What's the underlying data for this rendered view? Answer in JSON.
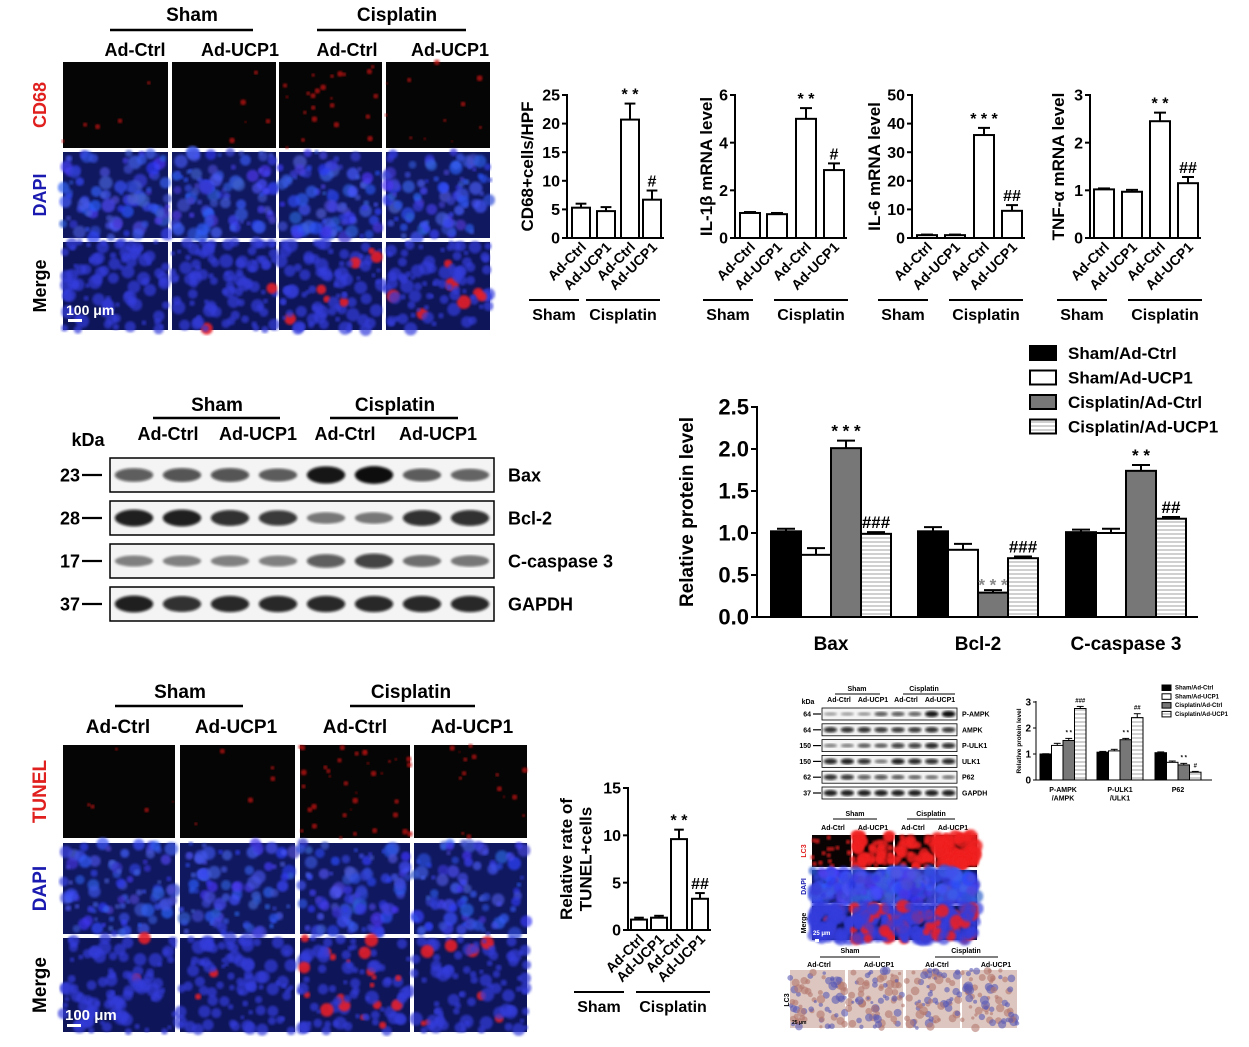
{
  "panel_a": {
    "groups": [
      "Sham",
      "Cisplatin"
    ],
    "conditions": [
      "Ad-Ctrl",
      "Ad-UCP1",
      "Ad-Ctrl",
      "Ad-UCP1"
    ],
    "rows": [
      "CD68",
      "DAPI",
      "Merge"
    ],
    "scale_bar": "100 μm"
  },
  "panel_b": {
    "kda_label": "kDa",
    "groups": [
      "Sham",
      "Cisplatin"
    ],
    "conditions": [
      "Ad-Ctrl",
      "Ad-UCP1",
      "Ad-Ctrl",
      "Ad-UCP1"
    ],
    "proteins": [
      {
        "name": "Bax",
        "kda": "23",
        "bands": [
          0.55,
          0.6,
          0.6,
          0.5,
          0.95,
          1.0,
          0.5,
          0.45
        ]
      },
      {
        "name": "Bcl-2",
        "kda": "28",
        "bands": [
          0.9,
          0.9,
          0.8,
          0.75,
          0.35,
          0.35,
          0.8,
          0.8
        ]
      },
      {
        "name": "C-caspase 3",
        "kda": "17",
        "bands": [
          0.3,
          0.3,
          0.3,
          0.3,
          0.55,
          0.7,
          0.4,
          0.35
        ]
      },
      {
        "name": "GAPDH",
        "kda": "37",
        "bands": [
          0.9,
          0.8,
          0.85,
          0.85,
          0.85,
          0.85,
          0.85,
          0.85
        ]
      }
    ]
  },
  "panel_c": {
    "groups": [
      "Sham",
      "Cisplatin"
    ],
    "conditions": [
      "Ad-Ctrl",
      "Ad-UCP1",
      "Ad-Ctrl",
      "Ad-UCP1"
    ],
    "rows": [
      "TUNEL",
      "DAPI",
      "Merge"
    ],
    "scale_bar": "100 μm"
  },
  "panel_d": {
    "kda_label": "kDa",
    "groups": [
      "Sham",
      "Cisplatin"
    ],
    "conditions": [
      "Ad-Ctrl",
      "Ad-UCP1",
      "Ad-Ctrl",
      "Ad-UCP1"
    ],
    "proteins": [
      {
        "name": "P-AMPK",
        "kda": "64",
        "bands": [
          0.15,
          0.15,
          0.2,
          0.5,
          0.5,
          0.45,
          0.95,
          1.0
        ]
      },
      {
        "name": "AMPK",
        "kda": "64",
        "bands": [
          0.8,
          0.8,
          0.8,
          0.75,
          0.75,
          0.75,
          0.8,
          0.75
        ]
      },
      {
        "name": "P-ULK1",
        "kda": "150",
        "bands": [
          0.3,
          0.3,
          0.5,
          0.5,
          0.7,
          0.7,
          0.85,
          0.8
        ]
      },
      {
        "name": "ULK1",
        "kda": "150",
        "bands": [
          0.85,
          0.9,
          0.8,
          0.35,
          0.9,
          0.85,
          0.8,
          0.85
        ]
      },
      {
        "name": "P62",
        "kda": "62",
        "bands": [
          0.8,
          0.75,
          0.55,
          0.6,
          0.5,
          0.45,
          0.4,
          0.35
        ]
      },
      {
        "name": "GAPDH",
        "kda": "37",
        "bands": [
          0.9,
          0.9,
          0.9,
          0.9,
          0.9,
          0.9,
          0.9,
          0.9
        ]
      }
    ]
  },
  "panel_e": {
    "groups": [
      "Sham",
      "Cisplatin"
    ],
    "conditions": [
      "Ad-Ctrl",
      "Ad-UCP1",
      "Ad-Ctrl",
      "Ad-UCP1"
    ],
    "rows": [
      "LC3",
      "DAPI",
      "Merge"
    ],
    "scale_bar": "25 μm"
  },
  "panel_f": {
    "groups": [
      "Sham",
      "Cisplatin"
    ],
    "conditions": [
      "Ad-Ctrl",
      "Ad-UCP1",
      "Ad-Ctrl",
      "Ad-UCP1"
    ],
    "rows": [
      "LC3"
    ],
    "scale_bar": "25 μm"
  },
  "chart_data": [
    {
      "type": "bar",
      "title": "",
      "ylabel": "CD68+cells/HPF",
      "xlabel": "",
      "ylim": [
        0,
        25
      ],
      "ytick_labels": [
        "0",
        "5",
        "10",
        "15",
        "20",
        "25"
      ],
      "categories": [
        "Ad-Ctrl",
        "Ad-UCP1",
        "Ad-Ctrl",
        "Ad-UCP1"
      ],
      "group_labels": [
        "Sham",
        "Cisplatin"
      ],
      "values": [
        5.3,
        4.7,
        20.7,
        6.7
      ],
      "errors": [
        0.7,
        0.7,
        2.8,
        1.6
      ],
      "significance": [
        "",
        "",
        "* *",
        "#"
      ]
    },
    {
      "type": "bar",
      "title": "",
      "ylabel": "IL-1β mRNA level",
      "xlabel": "",
      "ylim": [
        0,
        6
      ],
      "ytick_labels": [
        "0",
        "2",
        "4",
        "6"
      ],
      "categories": [
        "Ad-Ctrl",
        "Ad-UCP1",
        "Ad-Ctrl",
        "Ad-UCP1"
      ],
      "group_labels": [
        "Sham",
        "Cisplatin"
      ],
      "values": [
        1.05,
        1.0,
        5.0,
        2.85
      ],
      "errors": [
        0.04,
        0.05,
        0.45,
        0.28
      ],
      "significance": [
        "",
        "",
        "* *",
        "#"
      ]
    },
    {
      "type": "bar",
      "title": "",
      "ylabel": "IL-6 mRNA level",
      "xlabel": "",
      "ylim": [
        0,
        50
      ],
      "ytick_labels": [
        "0",
        "10",
        "20",
        "30",
        "40",
        "50"
      ],
      "categories": [
        "Ad-Ctrl",
        "Ad-UCP1",
        "Ad-Ctrl",
        "Ad-UCP1"
      ],
      "group_labels": [
        "Sham",
        "Cisplatin"
      ],
      "values": [
        1,
        1,
        36,
        9.5
      ],
      "errors": [
        0.2,
        0.2,
        2.5,
        2
      ],
      "significance": [
        "",
        "",
        "* * *",
        "##"
      ]
    },
    {
      "type": "bar",
      "title": "",
      "ylabel": "TNF-α mRNA level",
      "xlabel": "",
      "ylim": [
        0,
        3
      ],
      "ytick_labels": [
        "0",
        "1",
        "2",
        "3"
      ],
      "categories": [
        "Ad-Ctrl",
        "Ad-UCP1",
        "Ad-Ctrl",
        "Ad-UCP1"
      ],
      "group_labels": [
        "Sham",
        "Cisplatin"
      ],
      "values": [
        1.02,
        0.97,
        2.45,
        1.15
      ],
      "errors": [
        0.02,
        0.04,
        0.18,
        0.13
      ],
      "significance": [
        "",
        "",
        "* *",
        "##"
      ]
    },
    {
      "type": "bar",
      "title": "",
      "ylabel": "Relative protein level",
      "xlabel": "",
      "ylim": [
        0,
        2.5
      ],
      "ytick_labels": [
        "0.0",
        "0.5",
        "1.0",
        "1.5",
        "2.0",
        "2.5"
      ],
      "categories": [
        "Bax",
        "Bcl-2",
        "C-caspase 3"
      ],
      "legend_position": "top-right",
      "series": [
        {
          "name": "Sham/Ad-Ctrl",
          "color": "#000000",
          "values": [
            1.02,
            1.02,
            1.01
          ],
          "errors": [
            0.03,
            0.05,
            0.03
          ],
          "significance": [
            "",
            "",
            ""
          ]
        },
        {
          "name": "Sham/Ad-UCP1",
          "color": "#ffffff",
          "values": [
            0.74,
            0.8,
            1.0
          ],
          "errors": [
            0.08,
            0.07,
            0.05
          ],
          "significance": [
            "",
            "",
            ""
          ]
        },
        {
          "name": "Cisplatin/Ad-Ctrl",
          "color": "#777777",
          "values": [
            2.01,
            0.29,
            1.74
          ],
          "errors": [
            0.09,
            0.03,
            0.07
          ],
          "significance": [
            "* * *",
            "* * *",
            "* *"
          ]
        },
        {
          "name": "Cisplatin/Ad-UCP1",
          "color": "hatched",
          "values": [
            0.99,
            0.7,
            1.17
          ],
          "errors": [
            0.02,
            0.02,
            0.02
          ],
          "significance": [
            "###",
            "###",
            "##"
          ]
        }
      ]
    },
    {
      "type": "bar",
      "title": "",
      "ylabel": "Relative rate of TUNEL+cells",
      "ylabel_lines": [
        "Relative rate of",
        "TUNEL+cells"
      ],
      "xlabel": "",
      "ylim": [
        0,
        15
      ],
      "ytick_labels": [
        "0",
        "5",
        "10",
        "15"
      ],
      "categories": [
        "Ad-Ctrl",
        "Ad-UCP1",
        "Ad-Ctrl",
        "Ad-UCP1"
      ],
      "group_labels": [
        "Sham",
        "Cisplatin"
      ],
      "values": [
        1.1,
        1.3,
        9.6,
        3.3
      ],
      "errors": [
        0.2,
        0.2,
        1.0,
        0.6
      ],
      "significance": [
        "",
        "",
        "* *",
        "##"
      ]
    },
    {
      "type": "bar",
      "title": "",
      "ylabel": "Relative protein level",
      "xlabel": "",
      "ylim": [
        0,
        3
      ],
      "ytick_labels": [
        "0",
        "1",
        "2",
        "3"
      ],
      "categories": [
        "P-AMPK /AMPK",
        "P-ULK1 /ULK1",
        "P62"
      ],
      "category_lines": [
        [
          "P-AMPK",
          "/AMPK"
        ],
        [
          "P-ULK1",
          "/ULK1"
        ],
        [
          "P62"
        ]
      ],
      "legend_position": "top-right",
      "series": [
        {
          "name": "Sham/Ad-Ctrl",
          "color": "#000000",
          "values": [
            1.0,
            1.07,
            1.05
          ],
          "errors": [
            0.01,
            0.03,
            0.03
          ],
          "significance": [
            "",
            "",
            ""
          ]
        },
        {
          "name": "Sham/Ad-UCP1",
          "color": "#ffffff",
          "values": [
            1.33,
            1.12,
            0.68
          ],
          "errors": [
            0.08,
            0.06,
            0.05
          ],
          "significance": [
            "",
            "",
            ""
          ]
        },
        {
          "name": "Cisplatin/Ad-Ctrl",
          "color": "#777777",
          "values": [
            1.52,
            1.55,
            0.58
          ],
          "errors": [
            0.08,
            0.05,
            0.06
          ],
          "significance": [
            "* *",
            "* *",
            "* *"
          ]
        },
        {
          "name": "Cisplatin/Ad-UCP1",
          "color": "hatched",
          "values": [
            2.75,
            2.4,
            0.3
          ],
          "errors": [
            0.08,
            0.15,
            0.03
          ],
          "significance": [
            "###",
            "##",
            "#"
          ]
        }
      ]
    }
  ]
}
